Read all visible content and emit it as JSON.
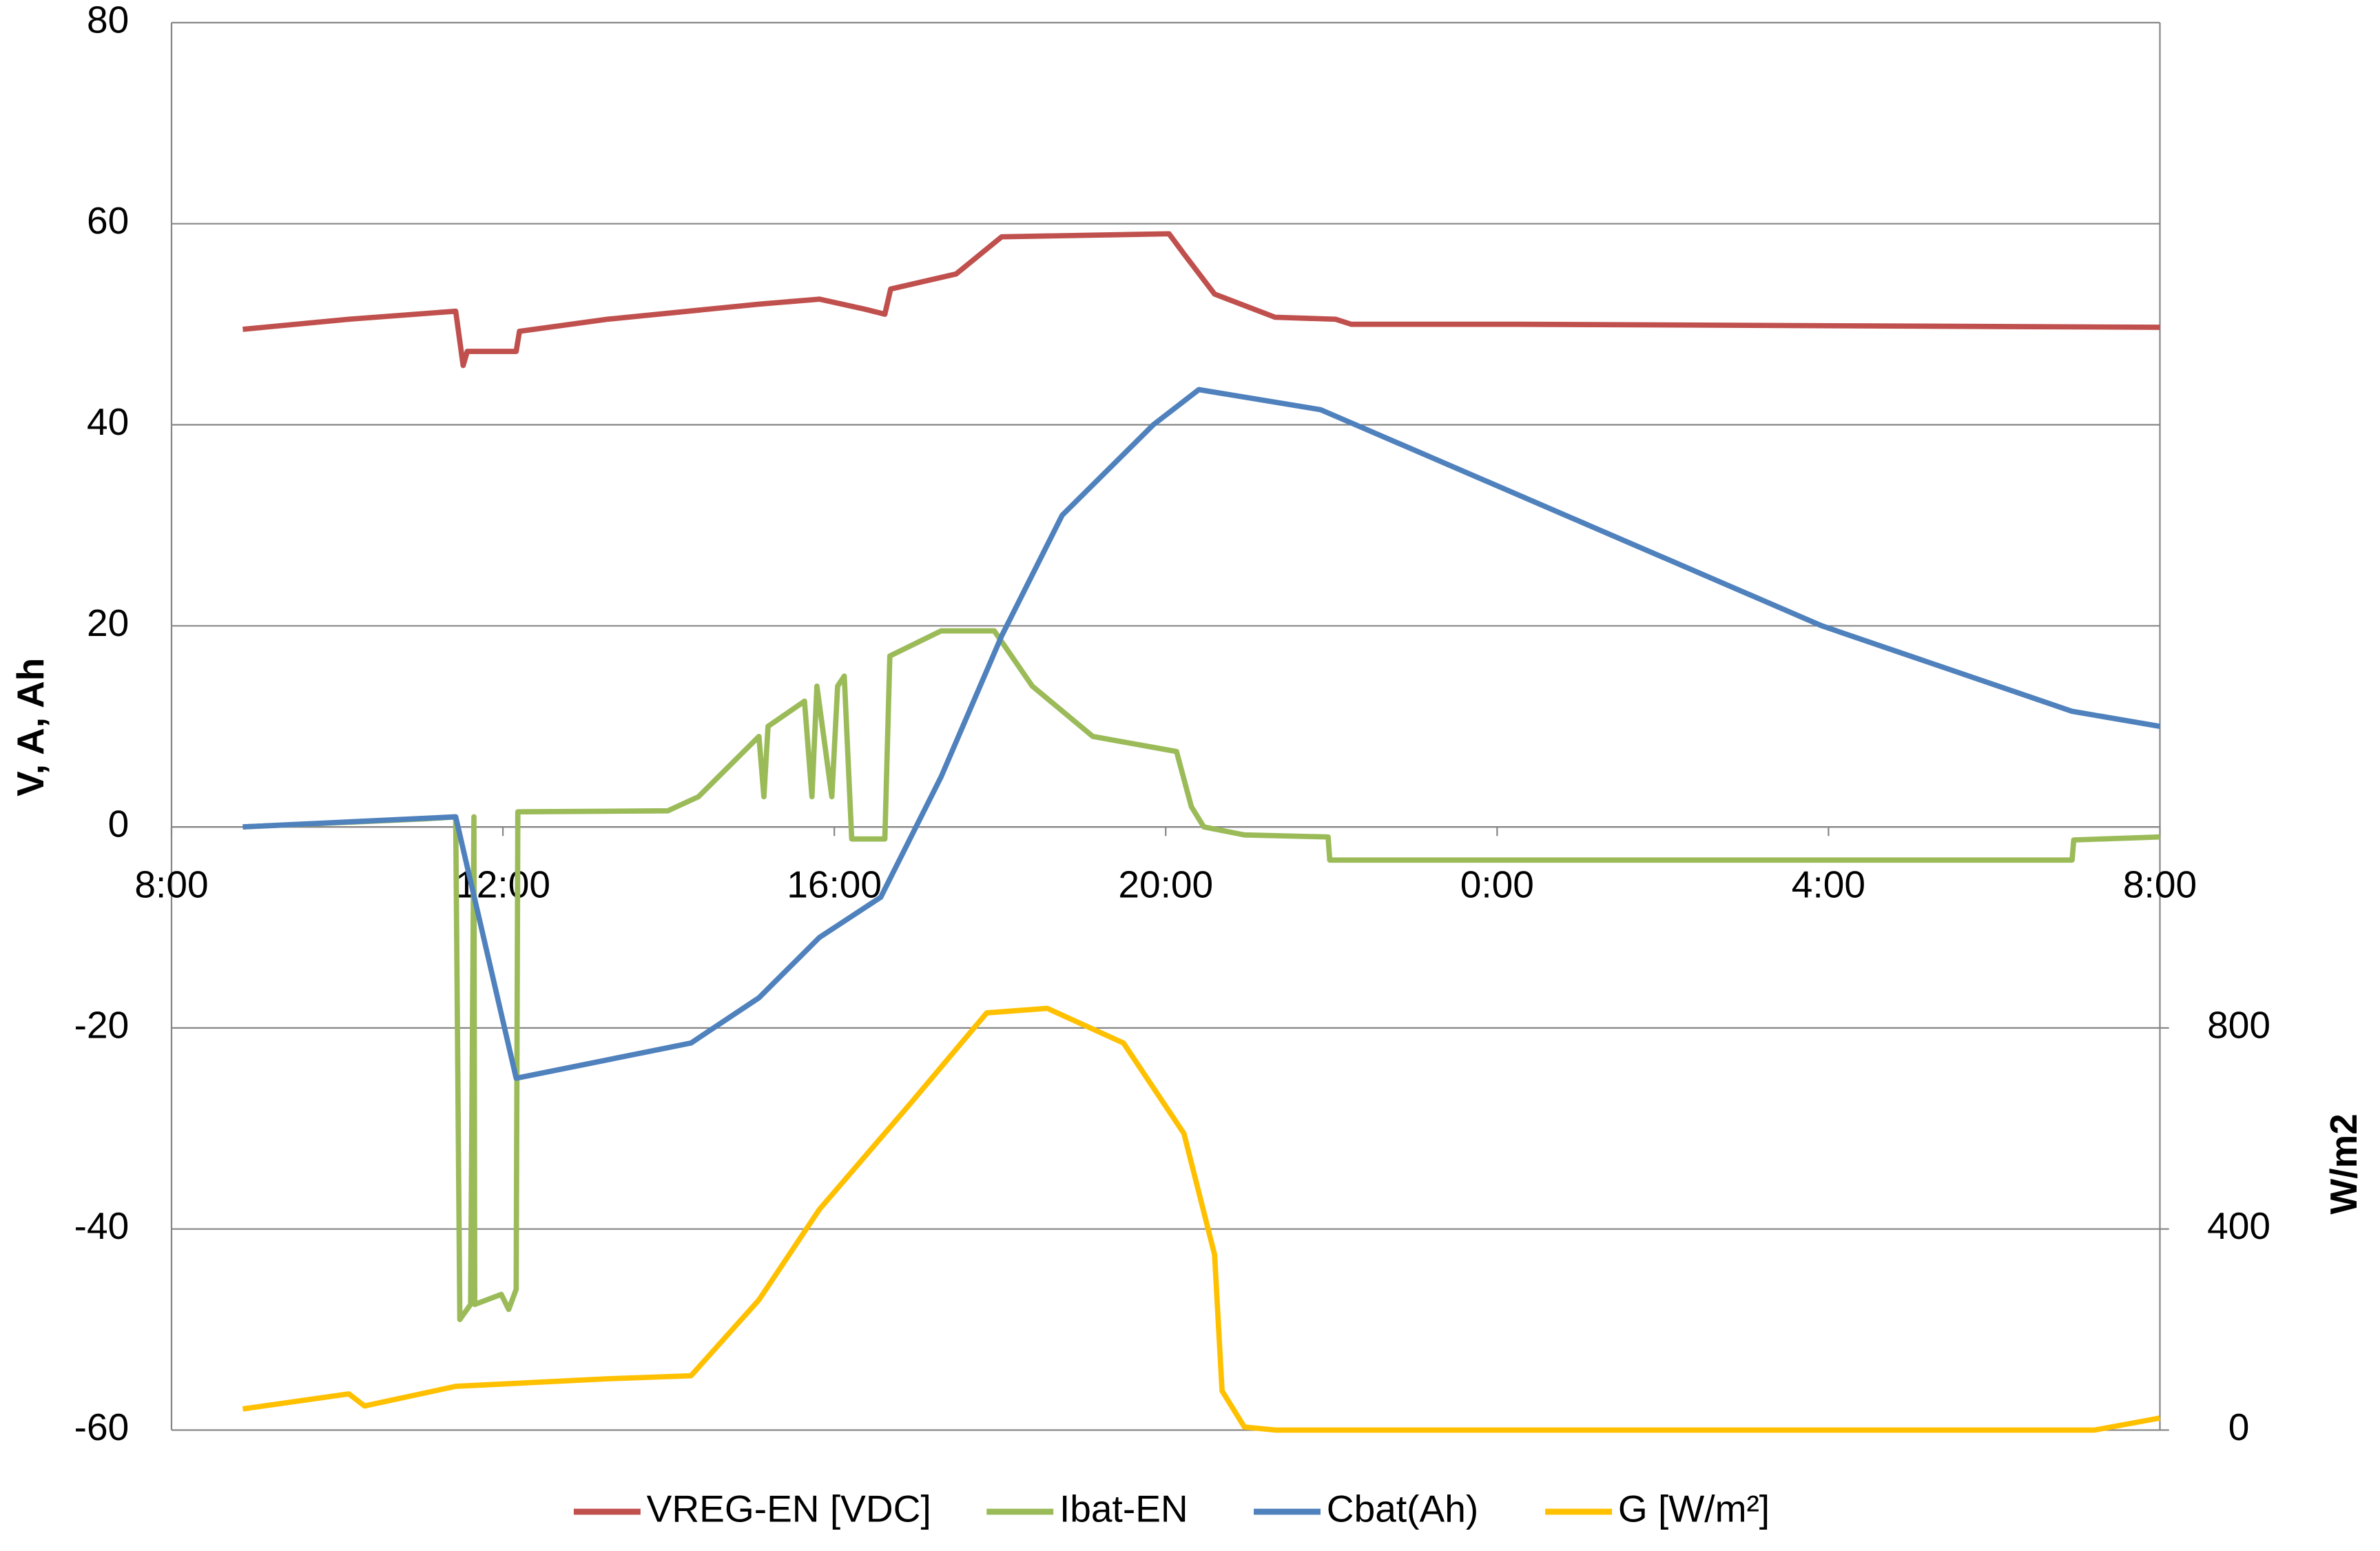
{
  "chart_data": {
    "type": "line",
    "ylabel": "V, A, Ah",
    "y2label": "W/m2",
    "xlim": [
      8,
      32
    ],
    "xticks": [
      {
        "value": 8,
        "label": "8:00"
      },
      {
        "value": 12,
        "label": "12:00"
      },
      {
        "value": 16,
        "label": "16:00"
      },
      {
        "value": 20,
        "label": "20:00"
      },
      {
        "value": 24,
        "label": "0:00"
      },
      {
        "value": 28,
        "label": "4:00"
      },
      {
        "value": 32,
        "label": "8:00"
      }
    ],
    "ylim": [
      -60,
      80
    ],
    "yticks": [
      -60,
      -40,
      -20,
      0,
      20,
      40,
      60,
      80
    ],
    "y2lim": [
      0,
      2800
    ],
    "y2ticks": [
      0,
      400,
      800
    ],
    "grid": true,
    "legend": "bottom",
    "series": [
      {
        "name": "VREG-EN [VDC]",
        "color": "#c0504d",
        "x": [
          8.86,
          10.14,
          11.43,
          11.52,
          11.57,
          12.16,
          12.2,
          13.26,
          15.09,
          15.82,
          16.37,
          16.61,
          16.68,
          17.47,
          18.02,
          20.04,
          20.22,
          20.59,
          21.32,
          22.05,
          22.24,
          24.25,
          32
        ],
        "values": [
          49.5,
          50.5,
          51.3,
          45.9,
          47.3,
          47.3,
          49.3,
          50.5,
          52,
          52.5,
          51.5,
          51,
          53.5,
          55,
          58.7,
          59,
          57,
          53,
          50.7,
          50.5,
          50,
          50,
          49.7
        ]
      },
      {
        "name": "Ibat-EN",
        "color": "#9bbb59",
        "x": [
          8.86,
          11.06,
          11.43,
          11.48,
          11.61,
          11.65,
          11.66,
          11.98,
          12.07,
          12.16,
          12.18,
          13.99,
          14.36,
          15.09,
          15.15,
          15.2,
          15.64,
          15.73,
          15.79,
          15.97,
          16.04,
          16.12,
          16.21,
          16.61,
          16.67,
          17.29,
          17.93,
          18.39,
          19.12,
          20.13,
          20.31,
          20.46,
          20.95,
          21.96,
          21.98,
          30.94,
          30.96,
          32
        ],
        "values": [
          0,
          0.8,
          1,
          -49,
          -47.5,
          1,
          -47.5,
          -46.5,
          -48,
          -46,
          1.5,
          1.6,
          3,
          9,
          3,
          10,
          12.5,
          3,
          14,
          3,
          14,
          15,
          -1.2,
          -1.2,
          17,
          19.5,
          19.5,
          14,
          9,
          7.5,
          2,
          0,
          -0.8,
          -1,
          -3.3,
          -3.3,
          -1.3,
          -1
        ]
      },
      {
        "name": "Cbat(Ah)",
        "color": "#4f81bd",
        "x": [
          8.86,
          11.43,
          12.16,
          14.27,
          15.09,
          15.82,
          16.56,
          17.29,
          18.02,
          18.75,
          19.85,
          20.4,
          21.87,
          27.92,
          30.94,
          32
        ],
        "values": [
          0,
          1,
          -25,
          -21.5,
          -17,
          -11,
          -7,
          5,
          19,
          31,
          40,
          43.5,
          41.5,
          20,
          11.5,
          10
        ]
      },
      {
        "name": "G [W/m²]",
        "color": "#ffc000",
        "axis": "y2",
        "x": [
          8.86,
          10.14,
          10.33,
          11.43,
          13.26,
          14.27,
          15.09,
          15.82,
          16.92,
          17.84,
          18.57,
          19.49,
          20.22,
          20.59,
          20.68,
          20.95,
          21.32,
          31.21,
          32
        ],
        "values": [
          42,
          72,
          48,
          87,
          102,
          108,
          259,
          439,
          650,
          830,
          839,
          770,
          590,
          349,
          78,
          6,
          0,
          0,
          24
        ]
      }
    ]
  }
}
